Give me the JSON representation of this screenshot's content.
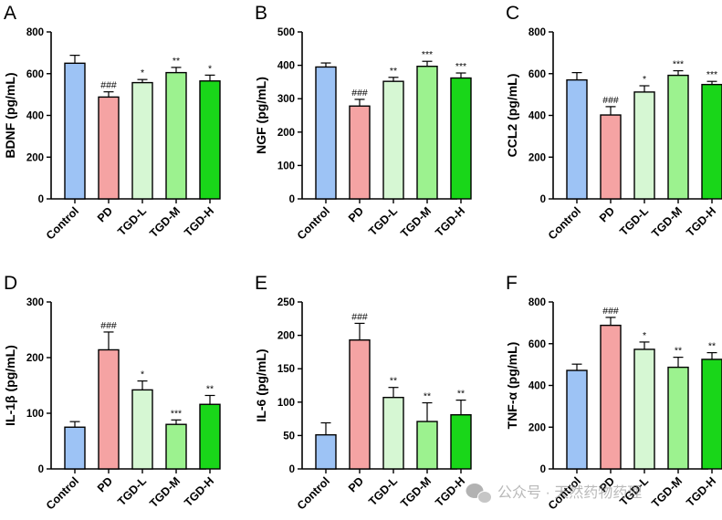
{
  "colors": {
    "Control": "#9dc3f5",
    "PD": "#f5a3a3",
    "TGD-L": "#d6f7d3",
    "TGD-M": "#9cf28f",
    "TGD-H": "#19d619",
    "axis": "#000000"
  },
  "watermark": {
    "icon": "wechat-icon",
    "text": "公众号 · 天然药物药理"
  },
  "chart_data": [
    {
      "panel": "A",
      "type": "bar",
      "ylabel": "BDNF (pg/mL)",
      "ylim": [
        0,
        800
      ],
      "yticks": [
        0,
        200,
        400,
        600,
        800
      ],
      "categories": [
        "Control",
        "PD",
        "TGD-L",
        "TGD-M",
        "TGD-H"
      ],
      "values": [
        650,
        488,
        557,
        605,
        565
      ],
      "errors": [
        38,
        25,
        15,
        25,
        28
      ],
      "significance": [
        "",
        "###",
        "*",
        "**",
        "*"
      ]
    },
    {
      "panel": "B",
      "type": "bar",
      "ylabel": "NGF (pg/mL)",
      "ylim": [
        0,
        500
      ],
      "yticks": [
        0,
        100,
        200,
        300,
        400,
        500
      ],
      "categories": [
        "Control",
        "PD",
        "TGD-L",
        "TGD-M",
        "TGD-H"
      ],
      "values": [
        395,
        278,
        352,
        397,
        362
      ],
      "errors": [
        12,
        20,
        12,
        15,
        15
      ],
      "significance": [
        "",
        "###",
        "**",
        "***",
        "***"
      ]
    },
    {
      "panel": "C",
      "type": "bar",
      "ylabel": "CCL2 (pg/mL)",
      "ylim": [
        0,
        800
      ],
      "yticks": [
        0,
        200,
        400,
        600,
        800
      ],
      "categories": [
        "Control",
        "PD",
        "TGD-L",
        "TGD-M",
        "TGD-H"
      ],
      "values": [
        570,
        402,
        512,
        592,
        548
      ],
      "errors": [
        35,
        40,
        30,
        22,
        15
      ],
      "significance": [
        "",
        "###",
        "*",
        "***",
        "***"
      ]
    },
    {
      "panel": "D",
      "type": "bar",
      "ylabel": "IL-1β (pg/mL)",
      "ylim": [
        0,
        300
      ],
      "yticks": [
        0,
        100,
        200,
        300
      ],
      "categories": [
        "Control",
        "PD",
        "TGD-L",
        "TGD-M",
        "TGD-H"
      ],
      "values": [
        75,
        214,
        142,
        80,
        116
      ],
      "errors": [
        10,
        32,
        16,
        8,
        16
      ],
      "significance": [
        "",
        "###",
        "*",
        "***",
        "**"
      ]
    },
    {
      "panel": "E",
      "type": "bar",
      "ylabel": "IL-6 (pg/mL)",
      "ylim": [
        0,
        250
      ],
      "yticks": [
        0,
        50,
        100,
        150,
        200,
        250
      ],
      "categories": [
        "Control",
        "PD",
        "TGD-L",
        "TGD-M",
        "TGD-H"
      ],
      "values": [
        51,
        193,
        107,
        71,
        81
      ],
      "errors": [
        18,
        25,
        15,
        28,
        22
      ],
      "significance": [
        "",
        "###",
        "**",
        "**",
        "**"
      ]
    },
    {
      "panel": "F",
      "type": "bar",
      "ylabel": "TNF-α (pg/mL)",
      "ylim": [
        0,
        800
      ],
      "yticks": [
        0,
        200,
        400,
        600,
        800
      ],
      "categories": [
        "Control",
        "PD",
        "TGD-L",
        "TGD-M",
        "TGD-H"
      ],
      "values": [
        472,
        688,
        573,
        487,
        525
      ],
      "errors": [
        30,
        38,
        35,
        48,
        32
      ],
      "significance": [
        "",
        "###",
        "*",
        "**",
        "**"
      ]
    }
  ]
}
